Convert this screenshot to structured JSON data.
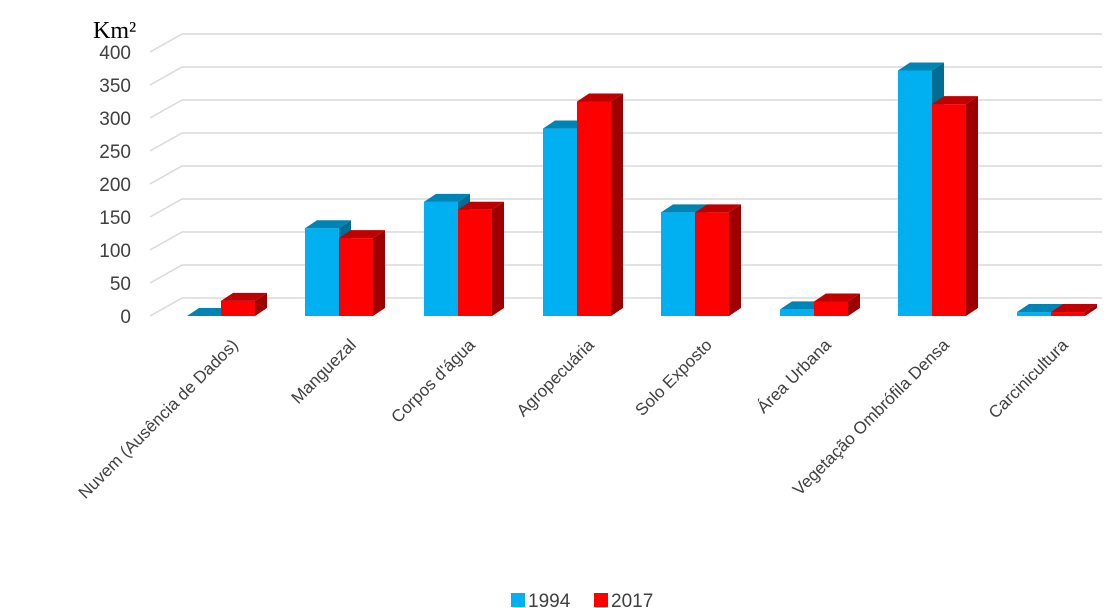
{
  "chart_data": {
    "type": "bar",
    "title": "",
    "ylabel": "Km²",
    "xlabel": "",
    "ylim": [
      0,
      400
    ],
    "yticks": [
      0,
      50,
      100,
      150,
      200,
      250,
      300,
      350,
      400
    ],
    "grid": true,
    "legend_position": "bottom",
    "categories": [
      "Nuvem (Ausência de Dados)",
      "Manguezal",
      "Corpos d'água",
      "Agropecuária",
      "Solo Exposto",
      "Área Urbana",
      "Vegetação Ombrófila Densa",
      "Carcinicultura"
    ],
    "series": [
      {
        "name": "1994",
        "color": "#00b0f0",
        "values": [
          0,
          133,
          173,
          284,
          157,
          10,
          372,
          6
        ]
      },
      {
        "name": "2017",
        "color": "#ff0000",
        "values": [
          23,
          118,
          161,
          325,
          157,
          22,
          321,
          6
        ]
      }
    ]
  }
}
